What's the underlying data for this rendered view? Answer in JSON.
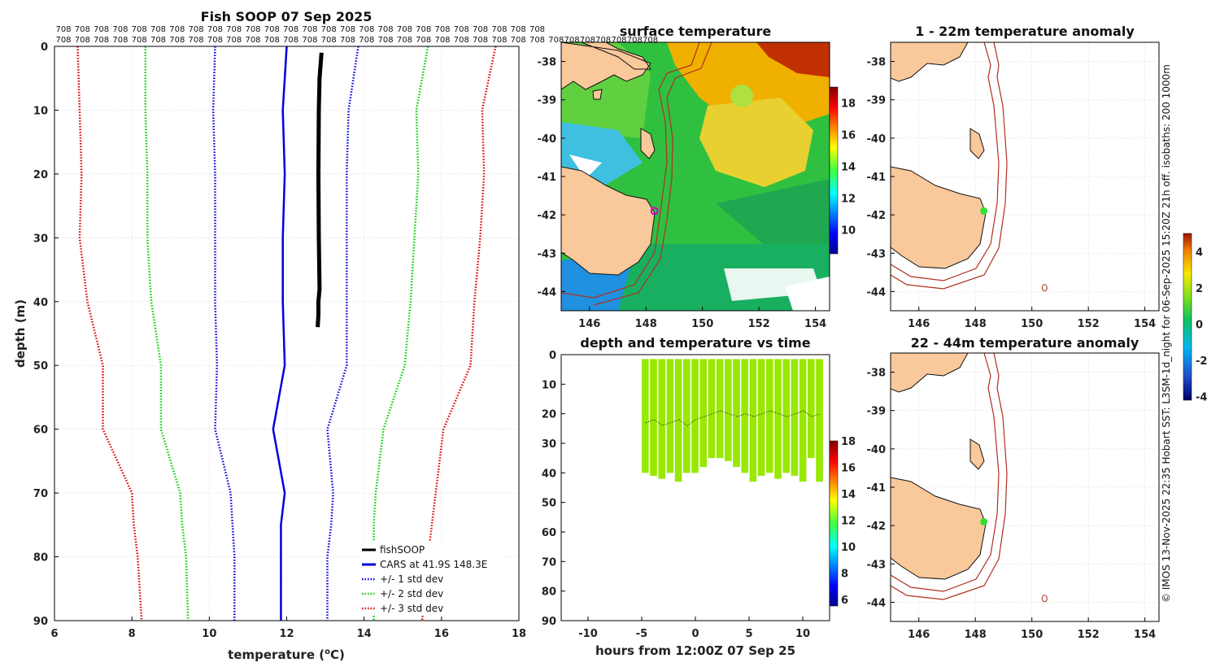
{
  "chart_data": [
    {
      "type": "line",
      "title": "Fish SOOP 07 Sep 2025",
      "xlabel": "temperature (",
      "xlabel_unit": "o",
      "xlabel_tail": "C)",
      "ylabel": "depth (m)",
      "xlim": [
        6,
        18
      ],
      "ylim": [
        90,
        0
      ],
      "xticks": [
        6,
        8,
        10,
        12,
        14,
        16,
        18
      ],
      "yticks": [
        0,
        10,
        20,
        30,
        40,
        50,
        60,
        70,
        80,
        90
      ],
      "grid": true,
      "header_label": "708",
      "header_row1_count": 26,
      "header_row2_count": 33,
      "depths": [
        0,
        10,
        20,
        30,
        40,
        50,
        60,
        70,
        75,
        80,
        90
      ],
      "series": [
        {
          "name": "fishSOOP",
          "color": "#000000",
          "style": "solid",
          "width": 5,
          "depths": [
            1,
            5,
            10,
            20,
            30,
            38,
            40,
            42,
            44
          ],
          "values": [
            12.9,
            12.85,
            12.83,
            12.82,
            12.83,
            12.85,
            12.82,
            12.82,
            12.8
          ]
        },
        {
          "name": "CARS at 41.9S 148.3E",
          "color": "#0000e0",
          "style": "solid",
          "width": 2.5,
          "values": [
            12.0,
            11.9,
            11.95,
            11.9,
            11.9,
            11.95,
            11.65,
            11.95,
            11.85,
            11.85,
            11.85
          ]
        },
        {
          "name": "+/- 1 std dev",
          "color": "#0000e0",
          "style": "dotted",
          "width": 2.5,
          "values": [
            10.15,
            10.1,
            10.15,
            10.15,
            10.15,
            10.2,
            10.15,
            10.55,
            10.6,
            10.65,
            10.65
          ]
        },
        {
          "name": "",
          "color": "#0000e0",
          "style": "dotted",
          "width": 2.5,
          "values": [
            13.85,
            13.6,
            13.55,
            13.55,
            13.55,
            13.55,
            13.05,
            13.2,
            13.15,
            13.05,
            13.05
          ]
        },
        {
          "name": "+/- 2 std dev",
          "color": "#00d000",
          "style": "dotted",
          "width": 2.5,
          "values": [
            8.35,
            8.35,
            8.4,
            8.4,
            8.5,
            8.75,
            8.75,
            9.25,
            9.3,
            9.4,
            9.45
          ]
        },
        {
          "name": "",
          "color": "#00d000",
          "style": "dotted",
          "width": 2.5,
          "values": [
            15.65,
            15.35,
            15.4,
            15.3,
            15.2,
            15.05,
            14.5,
            14.3,
            14.25,
            14.25,
            14.25
          ]
        },
        {
          "name": "+/- 3 std dev",
          "color": "#e00000",
          "style": "dotted",
          "width": 2.5,
          "values": [
            6.6,
            6.65,
            6.7,
            6.65,
            6.85,
            7.25,
            7.25,
            8.0,
            8.05,
            8.15,
            8.25
          ]
        },
        {
          "name": "",
          "color": "#e00000",
          "style": "dotted",
          "width": 2.5,
          "values": [
            17.4,
            17.05,
            17.1,
            17.0,
            16.85,
            16.75,
            16.05,
            15.85,
            15.75,
            15.65,
            15.5
          ]
        }
      ]
    },
    {
      "type": "heatmap",
      "title": "surface temperature",
      "xlim": [
        145,
        154.5
      ],
      "ylim": [
        -44.5,
        -37.5
      ],
      "xticks": [
        146,
        148,
        150,
        152,
        154
      ],
      "yticks": [
        -38,
        -39,
        -40,
        -41,
        -42,
        -43,
        -44
      ],
      "colorbar": {
        "min": 8.5,
        "max": 19,
        "ticks": [
          10,
          12,
          14,
          16,
          18
        ]
      },
      "marker": {
        "lon": 148.3,
        "lat": -41.9,
        "color": "#d000d0"
      }
    },
    {
      "type": "scatter",
      "title": "depth and temperature vs time",
      "xlabel": "hours from 12:00Z 07 Sep 25",
      "xlim": [
        -12.5,
        12.5
      ],
      "ylim": [
        90,
        0
      ],
      "xticks": [
        -10,
        -5,
        0,
        5,
        10
      ],
      "yticks": [
        0,
        10,
        20,
        30,
        40,
        50,
        60,
        70,
        80,
        90
      ],
      "time_range": [
        -5,
        12
      ],
      "depth_max": [
        40,
        41,
        42,
        40,
        43,
        40,
        40,
        38,
        35,
        35,
        36,
        38,
        40,
        43,
        41,
        40,
        42,
        40,
        41,
        43,
        35,
        43
      ],
      "mean_depth": [
        23,
        22,
        24,
        23,
        22,
        24,
        22,
        21,
        20,
        19,
        20,
        21,
        20,
        21,
        20,
        19,
        20,
        21,
        20,
        19,
        21,
        20
      ],
      "point_color": "#98e800",
      "colorbar": {
        "min": 5.5,
        "max": 18,
        "ticks": [
          6,
          8,
          10,
          12,
          14,
          16,
          18
        ]
      }
    },
    {
      "type": "heatmap",
      "title": "1 - 22m temperature anomaly",
      "xlim": [
        145,
        154.5
      ],
      "ylim": [
        -44.5,
        -37.5
      ],
      "xticks": [
        146,
        148,
        150,
        152,
        154
      ],
      "yticks": [
        -38,
        -39,
        -40,
        -41,
        -42,
        -43,
        -44
      ],
      "marker": {
        "lon": 148.3,
        "lat": -41.9,
        "color": "#30e030"
      }
    },
    {
      "type": "heatmap",
      "title": "22 - 44m temperature anomaly",
      "xlim": [
        145,
        154.5
      ],
      "ylim": [
        -44.5,
        -37.5
      ],
      "xticks": [
        146,
        148,
        150,
        152,
        154
      ],
      "yticks": [
        -38,
        -39,
        -40,
        -41,
        -42,
        -43,
        -44
      ],
      "marker": {
        "lon": 148.3,
        "lat": -41.9,
        "color": "#30e030"
      }
    }
  ],
  "anomaly_colorbar": {
    "min": -4.2,
    "max": 5,
    "ticks": [
      -4,
      -2,
      0,
      2,
      4
    ]
  },
  "side_caption": "© IMOS 13-Nov-2025 22:35 Hobart SST: L3SM-1d_night for 06-Sep-2025 15:20Z 21h off. isobaths: 200  1000m",
  "colors": {
    "land": "#f9c89b",
    "isobath": "#b03020",
    "grid": "#cccccc"
  }
}
